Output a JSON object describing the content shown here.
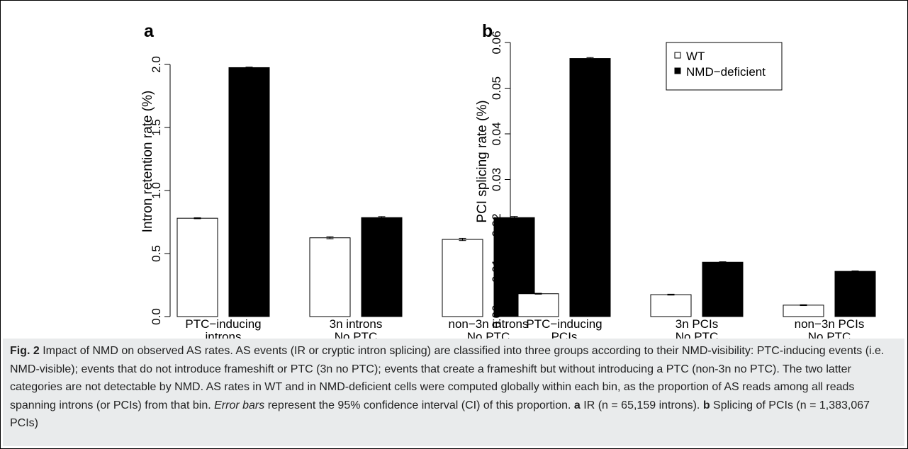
{
  "figure": {
    "caption": {
      "label": "Fig. 2",
      "s1": " Impact of NMD on observed AS rates. AS events (IR or cryptic intron splicing) are classified into three groups according to their NMD-visibility: PTC-inducing events (i.e. NMD-visible); events that do not introduce frameshift or PTC (3n no PTC); events that create a frameshift but without introducing a PTC (non-3n no PTC). The two latter categories are not detectable by NMD. AS rates in WT and in NMD-deficient cells were computed globally within each bin, as the proportion of AS reads among all reads spanning introns (or PCIs) from that bin. ",
      "s2": "Error bars",
      "s3": " represent the 95% confidence interval (CI) of this proportion. ",
      "s4": "a",
      "s5": " IR (n = 65,159 introns). ",
      "s6": "b",
      "s7": " Splicing of PCIs (n = 1,383,067 PCIs)"
    }
  },
  "chart_data": [
    {
      "panel": "a",
      "type": "bar",
      "ylabel": "Intron retention rate (%)",
      "ylim": [
        0,
        2.0
      ],
      "yticks": [
        "0.0",
        "0.5",
        "1.0",
        "1.5",
        "2.0"
      ],
      "categories": [
        [
          "PTC−inducing",
          "introns"
        ],
        [
          "3n introns",
          "No PTC"
        ],
        [
          "non−3n introns",
          "No PTC"
        ]
      ],
      "series": [
        {
          "name": "WT",
          "color": "#ffffff",
          "values": [
            0.78,
            0.625,
            0.612
          ],
          "err": [
            0.004,
            0.008,
            0.009
          ]
        },
        {
          "name": "NMD−deficient",
          "color": "#000000",
          "values": [
            1.975,
            0.785,
            0.785
          ],
          "err": [
            0.004,
            0.008,
            0.009
          ]
        }
      ]
    },
    {
      "panel": "b",
      "type": "bar",
      "ylabel": "PCI splicing rate (%)",
      "ylim": [
        0,
        0.06
      ],
      "yticks": [
        "0.00",
        "0.01",
        "0.02",
        "0.03",
        "0.04",
        "0.05",
        "0.06"
      ],
      "categories": [
        [
          "PTC−inducing",
          "PCIs"
        ],
        [
          "3n PCIs",
          "No PTC"
        ],
        [
          "non−3n PCIs",
          "No PTC"
        ]
      ],
      "series": [
        {
          "name": "WT",
          "color": "#ffffff",
          "values": [
            0.005,
            0.0048,
            0.0025
          ],
          "err": [
            0.0001,
            0.0001,
            0.0001
          ]
        },
        {
          "name": "NMD−deficient",
          "color": "#000000",
          "values": [
            0.0565,
            0.0119,
            0.0099
          ],
          "err": [
            0.0002,
            0.0001,
            0.0001
          ]
        }
      ],
      "legend": {
        "position": "top-right",
        "entries": [
          "WT",
          "NMD−deficient"
        ]
      }
    }
  ]
}
